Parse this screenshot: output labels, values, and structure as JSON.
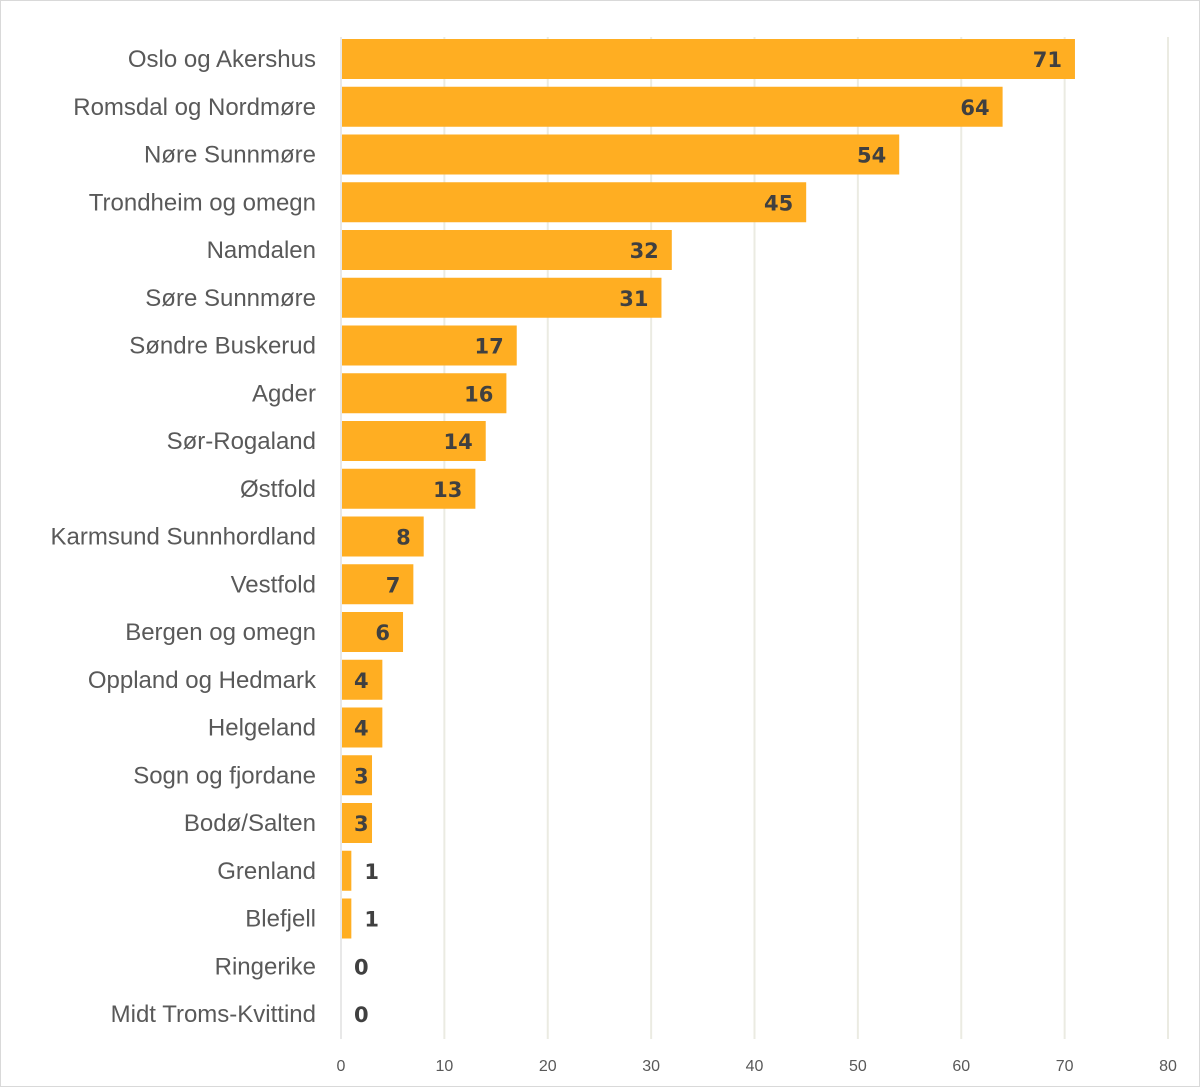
{
  "chart_data": {
    "type": "bar",
    "orientation": "horizontal",
    "title": "",
    "xlabel": "",
    "ylabel": "",
    "xlim": [
      0,
      80
    ],
    "x_ticks": [
      0,
      10,
      20,
      30,
      40,
      50,
      60,
      70,
      80
    ],
    "grid": "vertical",
    "legend": "none",
    "bar_color": "#ffae22",
    "data_labels": "inside-end",
    "categories": [
      "Oslo og Akershus",
      "Romsdal og Nordmøre",
      "Nøre Sunnmøre",
      "Trondheim og omegn",
      "Namdalen",
      "Søre Sunnmøre",
      "Søndre Buskerud",
      "Agder",
      "Sør-Rogaland",
      "Østfold",
      "Karmsund Sunnhordland",
      "Vestfold",
      "Bergen og omegn",
      "Oppland og Hedmark",
      "Helgeland",
      "Sogn og fjordane",
      "Bodø/Salten",
      "Grenland",
      "Blefjell",
      "Ringerike",
      "Midt Troms-Kvittind"
    ],
    "values": [
      71,
      64,
      54,
      45,
      32,
      31,
      17,
      16,
      14,
      13,
      8,
      7,
      6,
      4,
      4,
      3,
      3,
      1,
      1,
      0,
      0
    ]
  }
}
